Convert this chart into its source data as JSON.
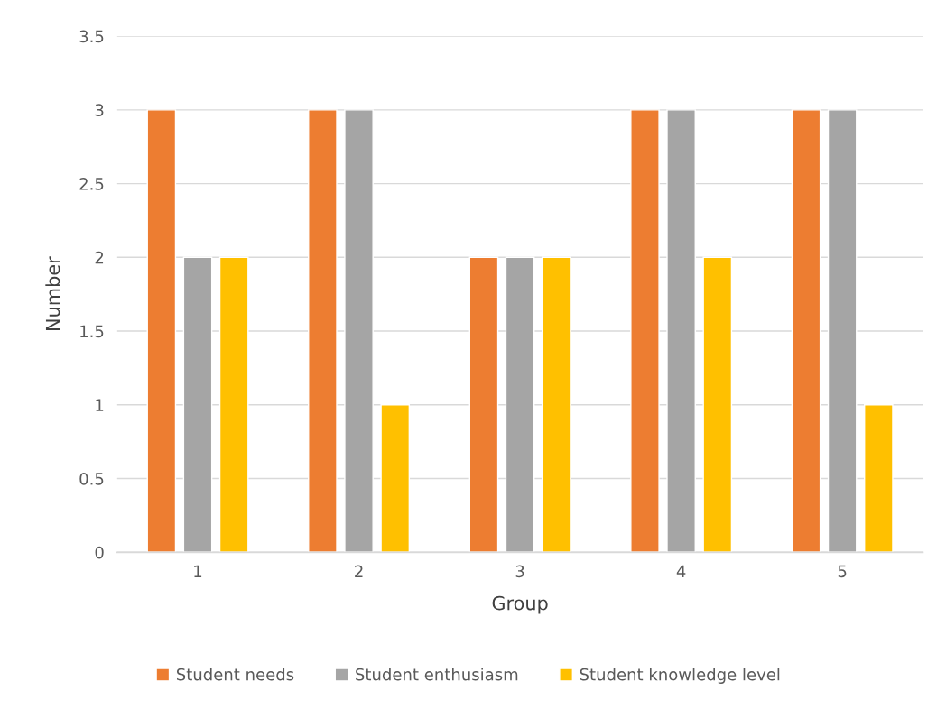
{
  "chart_data": {
    "type": "bar",
    "xlabel": "Group",
    "ylabel": "Number",
    "categories": [
      "1",
      "2",
      "3",
      "4",
      "5"
    ],
    "series": [
      {
        "name": "Student needs",
        "color": "#ed7d31",
        "values": [
          3,
          3,
          2,
          3,
          3
        ]
      },
      {
        "name": "Student enthusiasm",
        "color": "#a5a5a5",
        "values": [
          2,
          3,
          2,
          3,
          3
        ]
      },
      {
        "name": "Student knowledge level",
        "color": "#ffc000",
        "values": [
          2,
          1,
          2,
          2,
          1
        ]
      }
    ],
    "ylim": [
      0,
      3.5
    ],
    "yticks": [
      0,
      0.5,
      1,
      1.5,
      2,
      2.5,
      3,
      3.5
    ],
    "grid": "y",
    "legend": "bottom"
  }
}
